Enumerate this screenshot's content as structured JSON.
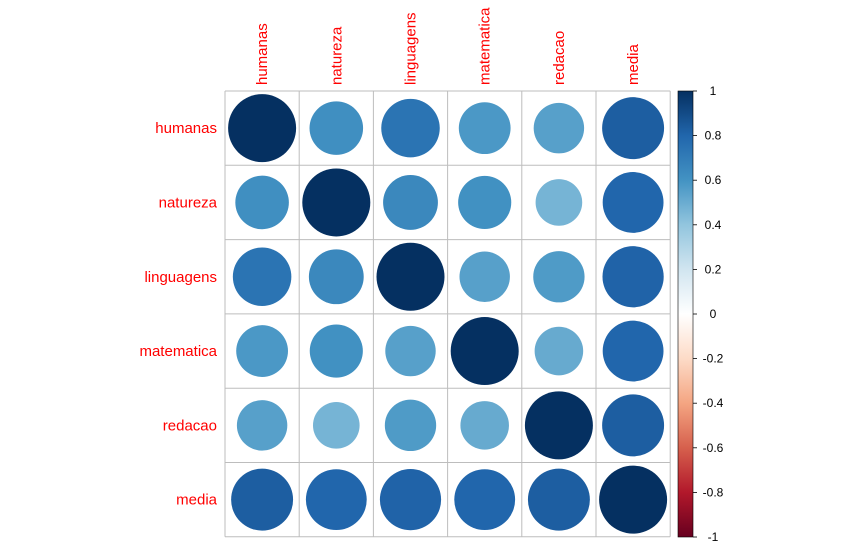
{
  "chart_data": {
    "type": "heatmap",
    "variables": [
      "humanas",
      "natureza",
      "linguagens",
      "matematica",
      "redacao",
      "media"
    ],
    "matrix": [
      [
        1.0,
        0.62,
        0.74,
        0.58,
        0.55,
        0.83
      ],
      [
        0.62,
        1.0,
        0.65,
        0.61,
        0.47,
        0.8
      ],
      [
        0.74,
        0.65,
        1.0,
        0.55,
        0.57,
        0.81
      ],
      [
        0.58,
        0.61,
        0.55,
        1.0,
        0.51,
        0.8
      ],
      [
        0.55,
        0.47,
        0.57,
        0.51,
        1.0,
        0.83
      ],
      [
        0.83,
        0.8,
        0.81,
        0.8,
        0.83,
        1.0
      ]
    ],
    "colorbar": {
      "range": [
        -1,
        1
      ],
      "ticks": [
        "1",
        "0.8",
        "0.6",
        "0.4",
        "0.2",
        "0",
        "-0.2",
        "-0.4",
        "-0.6",
        "-0.8",
        "-1"
      ],
      "placement": "right"
    },
    "label_color": "#ff0000",
    "colors": {
      "neg_strong": "#67001f",
      "neg_mid": "#d6604d",
      "zero": "#ffffff",
      "pos_mid": "#4393c3",
      "pos_strong": "#053061",
      "grid": "#bdbdbd"
    }
  }
}
